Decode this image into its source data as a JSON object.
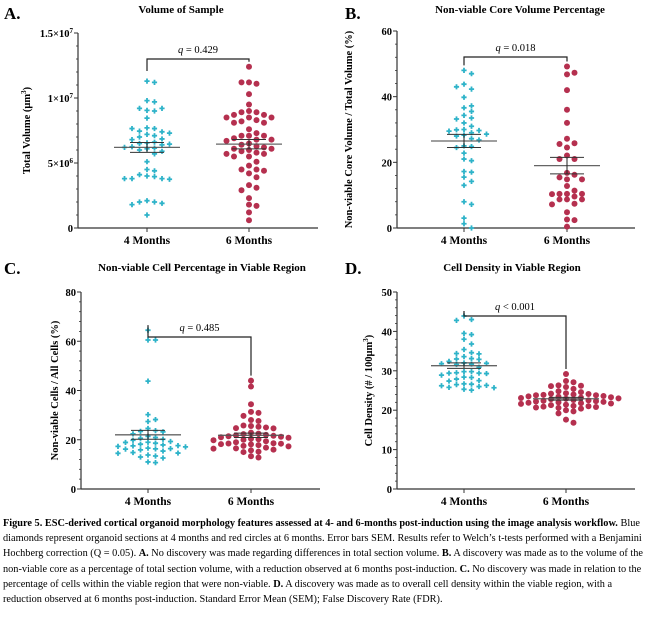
{
  "chart_data": [
    {
      "panel": "A.",
      "type": "scatter",
      "title": "Volume of Sample",
      "xlabel": "",
      "ylabel": "Total Volume (µm³)",
      "ylabel_parts": {
        "main": "Total Volume (µm",
        "sup": "3",
        "end": ")"
      },
      "categories": [
        "4 Months",
        "6 Months"
      ],
      "ylim": [
        0,
        15000000
      ],
      "yticks": [
        0,
        5000000,
        10000000,
        15000000
      ],
      "ytick_labels": [
        {
          "base": "0",
          "exp": ""
        },
        {
          "base": "5×10",
          "exp": "6"
        },
        {
          "base": "1×10",
          "exp": "7"
        },
        {
          "base": "1.5×10",
          "exp": "7"
        }
      ],
      "annotation": {
        "prefix": "q",
        "text": " = 0.429"
      },
      "series": [
        {
          "name": "4 Months",
          "marker": "diamond",
          "color": "#2eb3c9",
          "values": [
            11300000,
            11200000,
            9800000,
            9700000,
            9050000,
            9000000,
            9200000,
            9200000,
            8450000,
            7700000,
            7650000,
            7450000,
            7400000,
            7650000,
            7300000,
            7200000,
            7100000,
            7000000,
            6850000,
            6800000,
            6550000,
            6600000,
            6500000,
            6400000,
            6450000,
            6250000,
            6200000,
            6150000,
            6100000,
            6000000,
            5900000,
            5700000,
            5100000,
            4500000,
            4400000,
            4100000,
            4000000,
            3950000,
            3800000,
            3800000,
            3750000,
            3800000,
            2100000,
            2000000,
            2000000,
            1900000,
            1800000,
            1000000
          ],
          "mean": 6200000,
          "sem": 380000
        },
        {
          "name": "6 Months",
          "marker": "circle",
          "color": "#b5304f",
          "values": [
            12400000,
            11200000,
            11100000,
            11200000,
            10300000,
            9500000,
            9000000,
            8900000,
            8900000,
            8700000,
            8700000,
            8500000,
            8500000,
            8500000,
            8300000,
            8200000,
            8100000,
            8100000,
            7600000,
            7300000,
            7100000,
            7100000,
            7100000,
            6900000,
            6800000,
            6800000,
            6700000,
            6500000,
            6400000,
            6300000,
            6200000,
            6100000,
            6100000,
            6000000,
            5900000,
            5800000,
            5700000,
            5700000,
            5500000,
            5500000,
            5100000,
            4800000,
            4500000,
            4500000,
            4400000,
            4200000,
            3900000,
            3300000,
            3100000,
            2900000,
            2300000,
            1800000,
            1700000,
            1200000,
            600000
          ],
          "mean": 6450000,
          "sem": 360000
        }
      ]
    },
    {
      "panel": "B.",
      "type": "scatter",
      "title": "Non-viable Core Volume Percentage",
      "xlabel": "",
      "ylabel": "Non-viable Core Volume / Total Volume (%)",
      "categories": [
        "4 Months",
        "6 Months"
      ],
      "ylim": [
        0,
        60
      ],
      "yticks": [
        0,
        20,
        40,
        60
      ],
      "ytick_labels": [
        {
          "base": "0",
          "exp": ""
        },
        {
          "base": "20",
          "exp": ""
        },
        {
          "base": "40",
          "exp": ""
        },
        {
          "base": "60",
          "exp": ""
        }
      ],
      "annotation": {
        "prefix": "q",
        "text": " = 0.018"
      },
      "series": [
        {
          "name": "4 Months",
          "marker": "diamond",
          "color": "#2eb3c9",
          "values": [
            48,
            47,
            43.8,
            42.3,
            43,
            39.8,
            36.6,
            37.2,
            35.5,
            34.3,
            33.5,
            33.2,
            32,
            31,
            30,
            29.9,
            29.7,
            29.5,
            29,
            28.6,
            28.3,
            28,
            27.2,
            26.8,
            25,
            24.8,
            24.5,
            22.8,
            21,
            20.5,
            17.2,
            17,
            15.5,
            14.2,
            13,
            8,
            7.2,
            3,
            1.3,
            0
          ],
          "mean": 26.5,
          "sem": 2
        },
        {
          "name": "6 Months",
          "marker": "circle",
          "color": "#b5304f",
          "values": [
            49.2,
            46.8,
            47.3,
            42,
            36,
            32,
            27.2,
            25.8,
            25.6,
            24.5,
            22.1,
            21,
            21,
            16.8,
            16.2,
            15.4,
            14.8,
            14.8,
            12.8,
            11.4,
            10.4,
            10.4,
            10.4,
            10.3,
            9.6,
            8.7,
            8.7,
            8.7,
            7.4,
            7.2,
            4.8,
            2.6,
            2.4,
            0.4
          ],
          "mean": 19,
          "sem": 2.5
        }
      ]
    },
    {
      "panel": "C.",
      "type": "scatter",
      "title": "Non-viable Cell Percentage in Viable Region",
      "xlabel": "",
      "ylabel": "Non-viable Cells / All Cells (%)",
      "categories": [
        "4 Months",
        "6 Months"
      ],
      "ylim": [
        0,
        80
      ],
      "yticks": [
        0,
        20,
        40,
        60,
        80
      ],
      "ytick_labels": [
        {
          "base": "0",
          "exp": ""
        },
        {
          "base": "20",
          "exp": ""
        },
        {
          "base": "40",
          "exp": ""
        },
        {
          "base": "60",
          "exp": ""
        },
        {
          "base": "80",
          "exp": ""
        }
      ],
      "annotation": {
        "prefix": "q",
        "text": " = 0.485"
      },
      "series": [
        {
          "name": "4 Months",
          "marker": "diamond",
          "color": "#2eb3c9",
          "values": [
            64.5,
            60.5,
            60.5,
            43.8,
            30.2,
            28.2,
            27.4,
            24.6,
            23.7,
            23.4,
            23.2,
            22.4,
            21.4,
            20.9,
            20.6,
            20.2,
            19.8,
            19.3,
            19,
            18.9,
            18.6,
            18.2,
            17.9,
            17.6,
            17.5,
            17.3,
            17.1,
            16.6,
            16.4,
            16.3,
            16.2,
            15.9,
            15.4,
            14.8,
            14.6,
            14.5,
            13.8,
            13.4,
            13,
            12.6,
            11,
            10.7
          ],
          "mean": 22,
          "sem": 1.8
        },
        {
          "name": "6 Months",
          "marker": "circle",
          "color": "#b5304f",
          "values": [
            44,
            41.6,
            34.4,
            31.3,
            30.9,
            29.7,
            28,
            27.6,
            25.8,
            25.6,
            25.3,
            25,
            24.7,
            24.6,
            22.9,
            22.5,
            22.3,
            22,
            21.8,
            21.6,
            21.4,
            21.2,
            21,
            20.8,
            20.4,
            20.2,
            20,
            19.8,
            19.4,
            19,
            18.6,
            18.5,
            18.4,
            18.2,
            18.1,
            17.8,
            17.5,
            17.3,
            16.8,
            16.5,
            16.4,
            16,
            15.7,
            15.2,
            15,
            13.3,
            12.8
          ],
          "mean": 21.8,
          "sem": 0.9
        }
      ]
    },
    {
      "panel": "D.",
      "type": "scatter",
      "title": "Cell Density in Viable Region",
      "xlabel": "",
      "ylabel": "Cell Density (# / 100µm³)",
      "ylabel_parts": {
        "main": "Cell Density (# / 100µm",
        "sup": "3",
        "end": ")"
      },
      "categories": [
        "4 Months",
        "6 Months"
      ],
      "ylim": [
        0,
        50
      ],
      "yticks": [
        0,
        10,
        20,
        30,
        40,
        50
      ],
      "ytick_labels": [
        {
          "base": "0",
          "exp": ""
        },
        {
          "base": "10",
          "exp": ""
        },
        {
          "base": "20",
          "exp": ""
        },
        {
          "base": "30",
          "exp": ""
        },
        {
          "base": "40",
          "exp": ""
        },
        {
          "base": "50",
          "exp": ""
        }
      ],
      "annotation": {
        "prefix": "q",
        "text": " < 0.001"
      },
      "series": [
        {
          "name": "4 Months",
          "marker": "diamond",
          "color": "#2eb3c9",
          "values": [
            43.9,
            43,
            42.8,
            39.5,
            39.2,
            38,
            36.8,
            35.4,
            34.6,
            34.4,
            34.3,
            33.6,
            33.1,
            33,
            32.9,
            32.4,
            32,
            31.9,
            31.8,
            31.7,
            31.6,
            30.9,
            29.8,
            29.8,
            29.5,
            29.4,
            29.4,
            29.3,
            28.9,
            28.4,
            28.3,
            27.9,
            27.5,
            27.4,
            26.7,
            26.6,
            26.5,
            26.3,
            26.2,
            26,
            25.8,
            25.7,
            25.3,
            25.1
          ],
          "mean": 31.3,
          "sem": 0.7
        },
        {
          "name": "6 Months",
          "marker": "circle",
          "color": "#b5304f",
          "values": [
            29.2,
            27.4,
            27.1,
            26.3,
            26.2,
            26.1,
            25.9,
            25.4,
            24.8,
            24.6,
            24.3,
            24.2,
            24.1,
            24,
            23.9,
            23.8,
            23.8,
            23.6,
            23.5,
            23.4,
            23.3,
            23.2,
            23.1,
            23,
            22.9,
            22.8,
            22.6,
            22.5,
            22.4,
            22.3,
            22.2,
            22.1,
            22,
            21.9,
            21.8,
            21.7,
            21.6,
            21.4,
            21.3,
            21.1,
            21,
            20.9,
            20.8,
            20.7,
            20.6,
            20.4,
            20,
            19.7,
            19.2,
            17.6,
            16.8
          ],
          "mean": 22.9,
          "sem": 0.35
        }
      ]
    }
  ],
  "caption": {
    "lead_bold": "Figure 5. ESC-derived cortical organoid morphology features assessed at 4- and 6-months post-induction using the image analysis workflow.",
    "text1": " Blue diamonds represent organoid sections at 4 months and red circles at 6 months. Error bars SEM. Results refer to Welch’s t-tests performed with a Benjamini Hochberg correction (Q = 0.05). ",
    "a_label": "A.",
    "a_text": " No discovery was made regarding differences in total section volume. ",
    "b_label": "B.",
    "b_text": " A discovery was made as to the volume of the non-viable core as a percentage of total section volume, with a reduction observed at 6 months post-induction. ",
    "c_label": "C.",
    "c_text": " No discovery was made in relation to the percentage of cells within the viable region that were non-viable. ",
    "d_label": "D.",
    "d_text": " A discovery was made as to overall cell density within the viable region, with a reduction observed at 6 months post-induction. Standard Error Mean (SEM); False Discovery Rate (FDR)."
  }
}
